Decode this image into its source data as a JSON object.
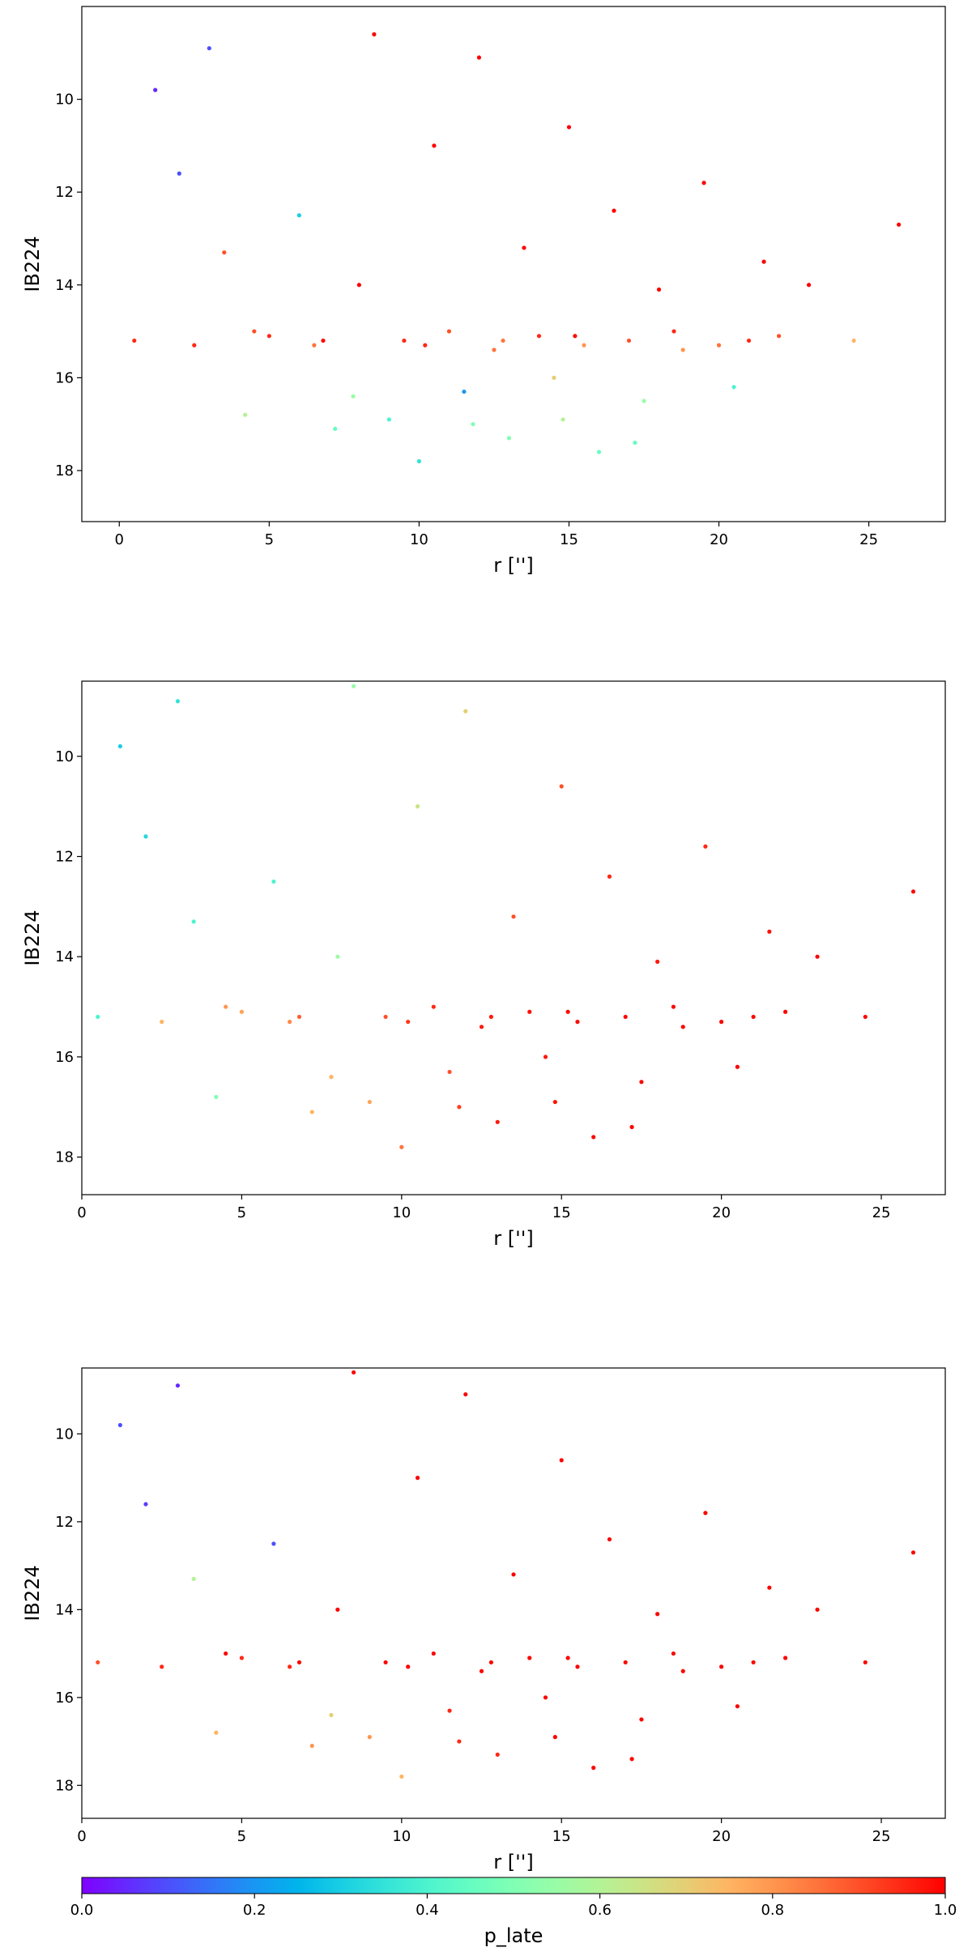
{
  "chart_data": [
    {
      "type": "scatter",
      "xlabel": "r ['']",
      "ylabel": "IB224",
      "colormap": "rainbow",
      "xlim": [
        -1.25,
        27.55
      ],
      "ylim": [
        19.1,
        8.0
      ],
      "xticks": [
        0,
        5,
        10,
        15,
        20,
        25
      ],
      "yticks": [
        10,
        12,
        14,
        16,
        18
      ],
      "x": [
        0.5,
        1.2,
        2.0,
        3.0,
        3.5,
        4.2,
        5.0,
        6.0,
        6.5,
        7.2,
        8.0,
        8.5,
        9.0,
        9.5,
        10.0,
        10.5,
        11.0,
        11.5,
        12.0,
        12.5,
        13.0,
        13.5,
        14.0,
        14.5,
        15.0,
        15.5,
        16.0,
        16.5,
        17.0,
        17.5,
        18.0,
        18.5,
        19.5,
        20.0,
        20.5,
        21.5,
        22.0,
        23.0,
        24.5,
        26.0,
        2.5,
        4.5,
        6.8,
        10.2,
        12.8,
        15.2,
        18.8,
        21.0,
        7.8,
        11.8,
        14.8,
        17.2
      ],
      "y": [
        15.2,
        9.8,
        11.6,
        8.9,
        13.3,
        16.8,
        15.1,
        12.5,
        15.3,
        17.1,
        14.0,
        8.6,
        16.9,
        15.2,
        17.8,
        11.0,
        15.0,
        16.3,
        9.1,
        15.4,
        17.3,
        13.2,
        15.1,
        16.0,
        10.6,
        15.3,
        17.6,
        12.4,
        15.2,
        16.5,
        14.1,
        15.0,
        11.8,
        15.3,
        16.2,
        13.5,
        15.1,
        14.0,
        15.2,
        12.7,
        15.3,
        15.0,
        15.2,
        15.3,
        15.2,
        15.1,
        15.4,
        15.2,
        16.4,
        17.0,
        16.9,
        17.4
      ],
      "c": [
        0.95,
        0.05,
        0.1,
        0.1,
        0.9,
        0.6,
        0.95,
        0.3,
        0.85,
        0.45,
        1.0,
        1.0,
        0.4,
        0.95,
        0.35,
        1.0,
        0.9,
        0.2,
        1.0,
        0.85,
        0.5,
        1.0,
        0.95,
        0.7,
        1.0,
        0.8,
        0.45,
        1.0,
        0.9,
        0.55,
        1.0,
        0.95,
        1.0,
        0.85,
        0.4,
        1.0,
        0.9,
        1.0,
        0.75,
        1.0,
        0.95,
        0.9,
        1.0,
        0.95,
        0.85,
        1.0,
        0.8,
        0.95,
        0.55,
        0.5,
        0.6,
        0.45
      ]
    },
    {
      "type": "scatter",
      "xlabel": "r ['']",
      "ylabel": "IB224",
      "colormap": "rainbow",
      "xlim": [
        0,
        27
      ],
      "ylim": [
        18.75,
        8.5
      ],
      "xticks": [
        0,
        5,
        10,
        15,
        20,
        25
      ],
      "yticks": [
        10,
        12,
        14,
        16,
        18
      ],
      "x": [
        0.5,
        1.2,
        2.0,
        3.0,
        3.5,
        4.2,
        5.0,
        6.0,
        6.5,
        7.2,
        8.0,
        8.5,
        9.0,
        9.5,
        10.0,
        10.5,
        11.0,
        11.5,
        12.0,
        12.5,
        13.0,
        13.5,
        14.0,
        14.5,
        15.0,
        15.5,
        16.0,
        16.5,
        17.0,
        17.5,
        18.0,
        18.5,
        19.5,
        20.0,
        20.5,
        21.5,
        22.0,
        23.0,
        24.5,
        26.0,
        2.5,
        4.5,
        6.8,
        10.2,
        12.8,
        15.2,
        18.8,
        21.0,
        7.8,
        11.8,
        14.8,
        17.2
      ],
      "y": [
        15.2,
        9.8,
        11.6,
        8.9,
        13.3,
        16.8,
        15.1,
        12.5,
        15.3,
        17.1,
        14.0,
        8.6,
        16.9,
        15.2,
        17.8,
        11.0,
        15.0,
        16.3,
        9.1,
        15.4,
        17.3,
        13.2,
        15.1,
        16.0,
        10.6,
        15.3,
        17.6,
        12.4,
        15.2,
        16.5,
        14.1,
        15.0,
        11.8,
        15.3,
        16.2,
        13.5,
        15.1,
        14.0,
        15.2,
        12.7,
        15.3,
        15.0,
        15.2,
        15.3,
        15.2,
        15.1,
        15.4,
        15.2,
        16.4,
        17.0,
        16.9,
        17.4
      ],
      "c": [
        0.4,
        0.3,
        0.32,
        0.35,
        0.4,
        0.5,
        0.78,
        0.4,
        0.82,
        0.75,
        0.55,
        0.55,
        0.78,
        0.9,
        0.85,
        0.65,
        0.95,
        0.9,
        0.7,
        0.97,
        0.97,
        0.9,
        0.98,
        0.97,
        0.9,
        0.99,
        0.99,
        0.95,
        1.0,
        1.0,
        0.97,
        1.0,
        0.95,
        1.0,
        1.0,
        0.98,
        1.0,
        1.0,
        1.0,
        0.99,
        0.75,
        0.8,
        0.88,
        0.93,
        0.97,
        0.99,
        1.0,
        1.0,
        0.75,
        0.92,
        0.98,
        1.0
      ]
    },
    {
      "type": "scatter",
      "xlabel": "r ['']",
      "ylabel": "IB224",
      "colormap": "rainbow",
      "xlim": [
        0,
        27
      ],
      "ylim": [
        18.75,
        8.5
      ],
      "xticks": [
        0,
        5,
        10,
        15,
        20,
        25
      ],
      "yticks": [
        10,
        12,
        14,
        16,
        18
      ],
      "x": [
        0.5,
        1.2,
        2.0,
        3.0,
        3.5,
        4.2,
        5.0,
        6.0,
        6.5,
        7.2,
        8.0,
        8.5,
        9.0,
        9.5,
        10.0,
        10.5,
        11.0,
        11.5,
        12.0,
        12.5,
        13.0,
        13.5,
        14.0,
        14.5,
        15.0,
        15.5,
        16.0,
        16.5,
        17.0,
        17.5,
        18.0,
        18.5,
        19.5,
        20.0,
        20.5,
        21.5,
        22.0,
        23.0,
        24.5,
        26.0,
        2.5,
        4.5,
        6.8,
        10.2,
        12.8,
        15.2,
        18.8,
        21.0,
        7.8,
        11.8,
        14.8,
        17.2
      ],
      "y": [
        15.2,
        9.8,
        11.6,
        8.9,
        13.3,
        16.8,
        15.1,
        12.5,
        15.3,
        17.1,
        14.0,
        8.6,
        16.9,
        15.2,
        17.8,
        11.0,
        15.0,
        16.3,
        9.1,
        15.4,
        17.3,
        13.2,
        15.1,
        16.0,
        10.6,
        15.3,
        17.6,
        12.4,
        15.2,
        16.5,
        14.1,
        15.0,
        11.8,
        15.3,
        16.2,
        13.5,
        15.1,
        14.0,
        15.2,
        12.7,
        15.3,
        15.0,
        15.2,
        15.3,
        15.2,
        15.1,
        15.4,
        15.2,
        16.4,
        17.0,
        16.9,
        17.4
      ],
      "c": [
        0.9,
        0.1,
        0.08,
        0.05,
        0.6,
        0.75,
        0.95,
        0.1,
        0.95,
        0.8,
        1.0,
        1.0,
        0.8,
        1.0,
        0.75,
        1.0,
        1.0,
        0.95,
        1.0,
        1.0,
        0.95,
        1.0,
        1.0,
        1.0,
        1.0,
        1.0,
        1.0,
        1.0,
        1.0,
        1.0,
        1.0,
        1.0,
        1.0,
        1.0,
        1.0,
        1.0,
        1.0,
        1.0,
        1.0,
        1.0,
        0.95,
        1.0,
        1.0,
        1.0,
        1.0,
        1.0,
        1.0,
        1.0,
        0.7,
        0.95,
        1.0,
        1.0
      ]
    },
    {
      "type": "colorbar",
      "label": "p_late",
      "colormap": "rainbow",
      "lim": [
        0,
        1
      ],
      "ticks": [
        {
          "value": 0,
          "label": "0.0"
        },
        {
          "value": 0.2,
          "label": "0.2"
        },
        {
          "value": 0.4,
          "label": "0.4"
        },
        {
          "value": 0.6,
          "label": "0.6"
        },
        {
          "value": 0.8,
          "label": "0.8"
        },
        {
          "value": 1,
          "label": "1.0"
        }
      ]
    }
  ]
}
